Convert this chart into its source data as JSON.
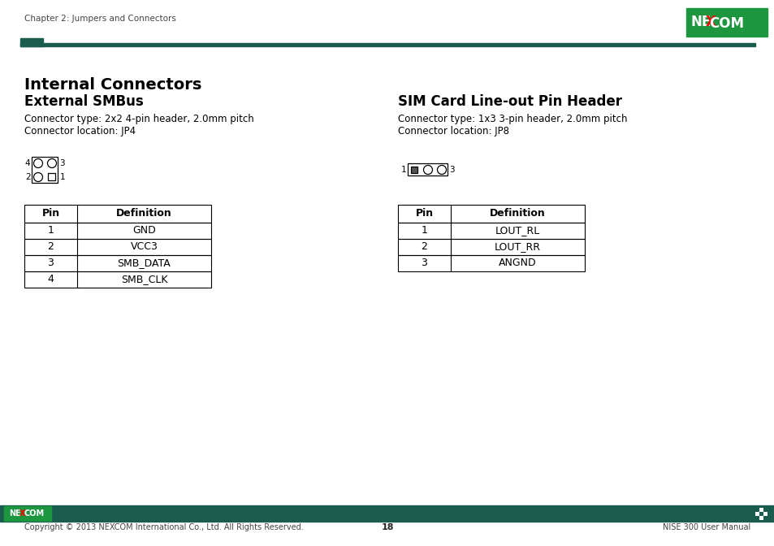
{
  "page_header_text": "Chapter 2: Jumpers and Connectors",
  "header_line_color": "#1a5c4e",
  "header_rect_color": "#1a5c4e",
  "logo_bg_color": "#1d9640",
  "section_title": "Internal Connectors",
  "left_subtitle": "External SMBus",
  "left_type_line1": "Connector type: 2x2 4-pin header, 2.0mm pitch",
  "left_type_line2": "Connector location: JP4",
  "right_subtitle": "SIM Card Line-out Pin Header",
  "right_type_line1": "Connector type: 1x3 3-pin header, 2.0mm pitch",
  "right_type_line2": "Connector location: JP8",
  "left_table_headers": [
    "Pin",
    "Definition"
  ],
  "left_table_rows": [
    [
      "1",
      "GND"
    ],
    [
      "2",
      "VCC3"
    ],
    [
      "3",
      "SMB_DATA"
    ],
    [
      "4",
      "SMB_CLK"
    ]
  ],
  "right_table_headers": [
    "Pin",
    "Definition"
  ],
  "right_table_rows": [
    [
      "1",
      "LOUT_RL"
    ],
    [
      "2",
      "LOUT_RR"
    ],
    [
      "3",
      "ANGND"
    ]
  ],
  "footer_bar_color": "#1a5c4e",
  "footer_text_left": "Copyright © 2013 NEXCOM International Co., Ltd. All Rights Reserved.",
  "footer_page_num": "18",
  "footer_text_right": "NISE 300 User Manual",
  "bg_color": "#ffffff",
  "text_color": "#000000"
}
